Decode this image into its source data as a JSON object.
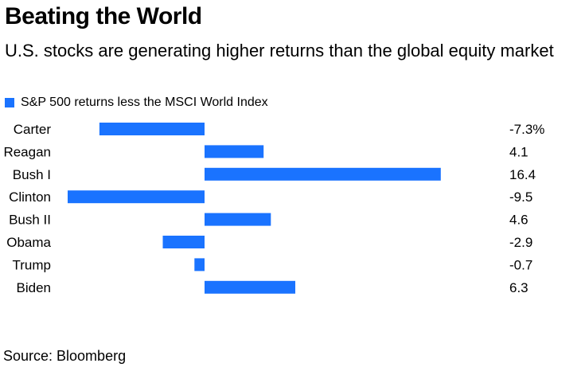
{
  "title": "Beating the World",
  "subtitle": "U.S. stocks are generating higher returns than the global equity market",
  "legend": {
    "label": "S&P 500 returns less the MSCI World Index",
    "color": "#1a73ff"
  },
  "source": "Source: Bloomberg",
  "chart_data": {
    "type": "bar",
    "orientation": "horizontal",
    "title": "Beating the World",
    "categories": [
      "Carter",
      "Reagan",
      "Bush I",
      "Clinton",
      "Bush II",
      "Obama",
      "Trump",
      "Biden"
    ],
    "values": [
      -7.3,
      4.1,
      16.4,
      -9.5,
      4.6,
      -2.9,
      -0.7,
      6.3
    ],
    "value_labels": [
      "-7.3%",
      "4.1",
      "16.4",
      "-9.5",
      "4.6",
      "-2.9",
      "-0.7",
      "6.3"
    ],
    "series_name": "S&P 500 returns less the MSCI World Index",
    "xlim": [
      -10,
      18
    ],
    "xlabel": "",
    "ylabel": "",
    "grid": false,
    "legend_position": "top-left"
  }
}
